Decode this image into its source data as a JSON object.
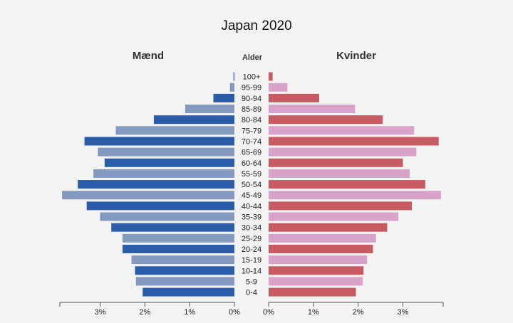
{
  "chart_data": {
    "type": "bar",
    "title": "Japan 2020",
    "left_title": "Mænd",
    "right_title": "Kvinder",
    "center_title": "Alder",
    "categories": [
      "0-4",
      "5-9",
      "10-14",
      "15-19",
      "20-24",
      "25-29",
      "30-34",
      "35-39",
      "40-44",
      "45-49",
      "50-54",
      "55-59",
      "60-64",
      "65-69",
      "70-74",
      "75-79",
      "80-84",
      "85-89",
      "90-94",
      "95-99",
      "100+"
    ],
    "series": [
      {
        "name": "Mænd",
        "values": [
          2.05,
          2.2,
          2.22,
          2.3,
          2.5,
          2.5,
          2.75,
          3.0,
          3.3,
          3.85,
          3.5,
          3.15,
          2.9,
          3.05,
          3.35,
          2.65,
          1.8,
          1.1,
          0.47,
          0.1,
          0.02
        ]
      },
      {
        "name": "Kvinder",
        "values": [
          1.95,
          2.1,
          2.12,
          2.2,
          2.33,
          2.4,
          2.65,
          2.9,
          3.2,
          3.85,
          3.5,
          3.15,
          3.0,
          3.3,
          3.8,
          3.25,
          2.55,
          1.93,
          1.13,
          0.42,
          0.09
        ]
      }
    ],
    "xlim": [
      0,
      3.9
    ],
    "x_ticks_left": [
      "3%",
      "2%",
      "1%",
      "0%"
    ],
    "x_ticks_right": [
      "0%",
      "1%",
      "2%",
      "3%"
    ],
    "x_tick_values": [
      3,
      2,
      1,
      0
    ],
    "colors": {
      "male_dark": "#2b5ca8",
      "male_light": "#8499bd",
      "female_dark": "#c75a63",
      "female_light": "#d9a2c8"
    },
    "grid": false,
    "legend": "none"
  }
}
